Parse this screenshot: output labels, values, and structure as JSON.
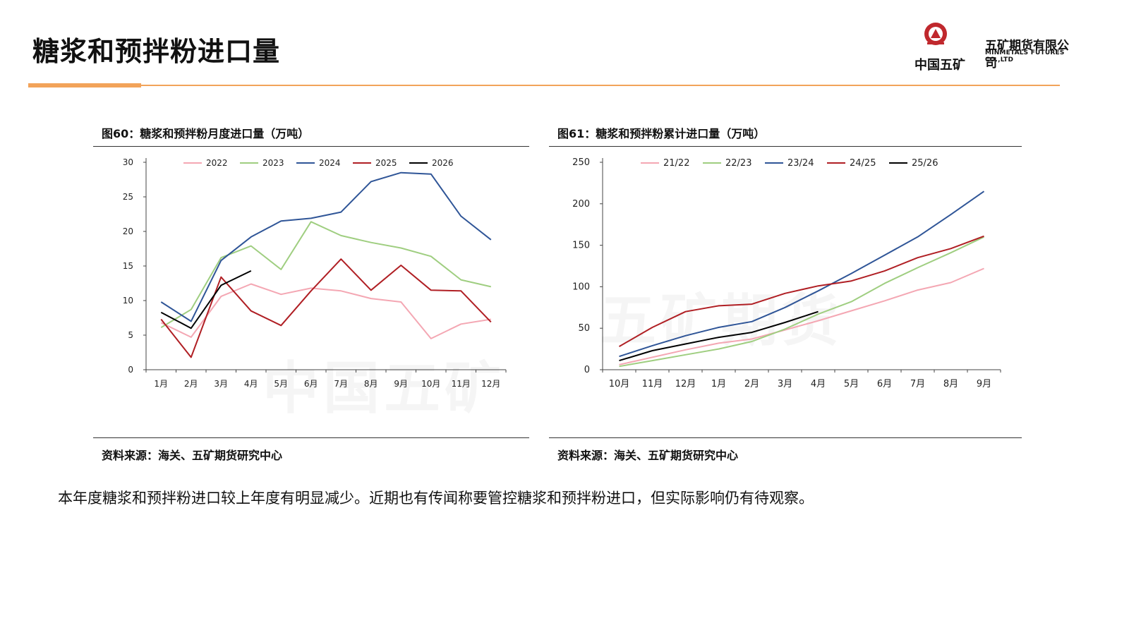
{
  "header": {
    "title": "糖浆和预拌粉进口量",
    "brand_cn": "中国五矿",
    "company_cn": "五矿期货有限公司",
    "company_en": "MINMETALS FUTURES CO.,LTD",
    "accent_color": "#f2a35a"
  },
  "watermark": {
    "left": "中国五矿",
    "right": "五矿期货"
  },
  "panels": [
    {
      "title": "图60：糖浆和预拌粉月度进口量（万吨）",
      "source": "资料来源：海关、五矿期货研究中心"
    },
    {
      "title": "图61：糖浆和预拌粉累计进口量（万吨）",
      "source": "资料来源：海关、五矿期货研究中心"
    }
  ],
  "chart_data": [
    {
      "type": "line",
      "categories": [
        "1月",
        "2月",
        "3月",
        "4月",
        "5月",
        "6月",
        "7月",
        "8月",
        "9月",
        "10月",
        "11月",
        "12月"
      ],
      "ylim": [
        0,
        30
      ],
      "yticks": [
        0,
        5,
        10,
        15,
        20,
        25,
        30
      ],
      "legend_position": "top",
      "series": [
        {
          "name": "2022",
          "color": "#f4a7b3",
          "values": [
            6.8,
            4.7,
            10.6,
            12.4,
            10.9,
            11.8,
            11.4,
            10.3,
            9.8,
            4.5,
            6.6,
            7.3
          ]
        },
        {
          "name": "2023",
          "color": "#9fce80",
          "values": [
            6.1,
            8.7,
            16.2,
            17.9,
            14.5,
            21.4,
            19.4,
            18.4,
            17.6,
            16.4,
            13.0,
            12.0
          ]
        },
        {
          "name": "2024",
          "color": "#2f5597",
          "values": [
            9.8,
            7.0,
            15.8,
            19.2,
            21.5,
            21.9,
            22.8,
            27.2,
            28.5,
            28.3,
            22.2,
            18.8
          ]
        },
        {
          "name": "2025",
          "color": "#b01f24",
          "values": [
            7.3,
            1.8,
            13.4,
            8.5,
            6.4,
            11.4,
            16.0,
            11.5,
            15.1,
            11.5,
            11.4,
            6.9
          ]
        },
        {
          "name": "2026",
          "color": "#000000",
          "values": [
            8.3,
            6.0,
            12.2,
            14.3,
            null,
            null,
            null,
            null,
            null,
            null,
            null,
            null
          ]
        }
      ]
    },
    {
      "type": "line",
      "categories": [
        "10月",
        "11月",
        "12月",
        "1月",
        "2月",
        "3月",
        "4月",
        "5月",
        "6月",
        "7月",
        "8月",
        "9月"
      ],
      "ylim": [
        0,
        250
      ],
      "yticks": [
        0,
        50,
        100,
        150,
        200,
        250
      ],
      "legend_position": "top",
      "series": [
        {
          "name": "21/22",
          "color": "#f4a7b3",
          "values": [
            6,
            15,
            24,
            32,
            37,
            48,
            59,
            71,
            83,
            96,
            105,
            122
          ]
        },
        {
          "name": "22/23",
          "color": "#9fce80",
          "values": [
            4,
            11,
            18,
            25,
            34,
            49,
            67,
            82,
            104,
            123,
            141,
            160
          ]
        },
        {
          "name": "23/24",
          "color": "#2f5597",
          "values": [
            16,
            29,
            41,
            51,
            58,
            75,
            95,
            116,
            138,
            160,
            187,
            215
          ]
        },
        {
          "name": "24/25",
          "color": "#b01f24",
          "values": [
            28,
            51,
            70,
            77,
            79,
            92,
            101,
            107,
            119,
            135,
            146,
            161
          ]
        },
        {
          "name": "25/26",
          "color": "#000000",
          "values": [
            11,
            23,
            31,
            39,
            45,
            57,
            70,
            null,
            null,
            null,
            null,
            null
          ]
        }
      ]
    }
  ],
  "body": {
    "text": "本年度糖浆和预拌粉进口较上年度有明显减少。近期也有传闻称要管控糖浆和预拌粉进口，但实际影响仍有待观察。"
  }
}
